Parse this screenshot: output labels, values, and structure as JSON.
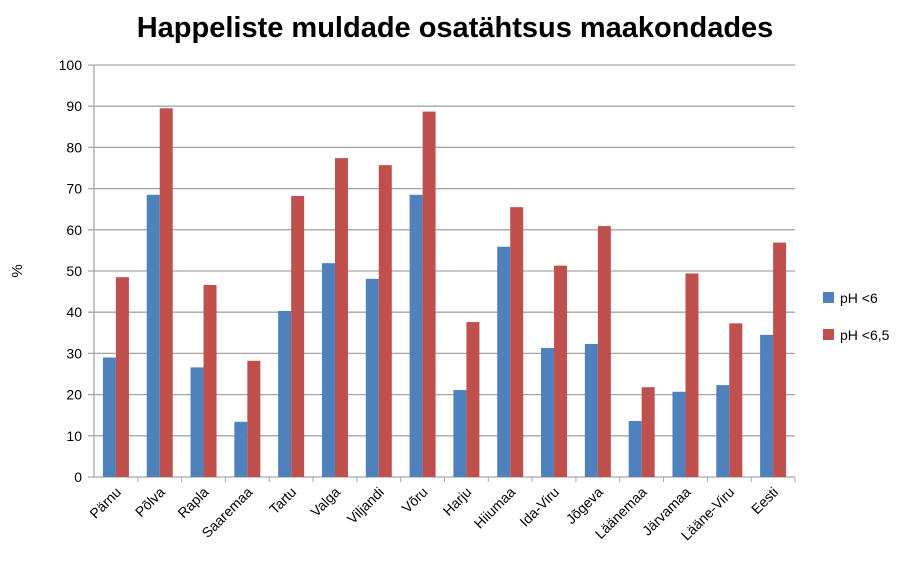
{
  "chart_data": {
    "type": "bar",
    "title": "Happeliste muldade osatähtsus maakondades",
    "xlabel": "",
    "ylabel": "%",
    "ylim": [
      0,
      100
    ],
    "yticks": [
      0,
      10,
      20,
      30,
      40,
      50,
      60,
      70,
      80,
      90,
      100
    ],
    "grid": true,
    "legend_position": "right",
    "categories": [
      "Pärnu",
      "Põlva",
      "Rapla",
      "Saaremaa",
      "Tartu",
      "Valga",
      "Viljandi",
      "Võru",
      "Harju",
      "Hiiumaa",
      "Ida-Viru",
      "Jõgeva",
      "Läänemaa",
      "Järvamaa",
      "Lääne-Viru",
      "Eesti"
    ],
    "series": [
      {
        "name": "pH <6",
        "color": "#4f81bd",
        "values": [
          29.0,
          68.5,
          26.6,
          13.4,
          40.3,
          51.9,
          48.1,
          68.5,
          21.1,
          55.9,
          31.3,
          32.3,
          13.6,
          20.7,
          22.3,
          34.5
        ]
      },
      {
        "name": "pH <6,5",
        "color": "#c0504d",
        "values": [
          48.5,
          89.5,
          46.6,
          28.2,
          68.2,
          77.4,
          75.7,
          88.7,
          37.6,
          65.5,
          51.3,
          60.9,
          21.8,
          49.4,
          37.3,
          56.9
        ]
      }
    ]
  }
}
